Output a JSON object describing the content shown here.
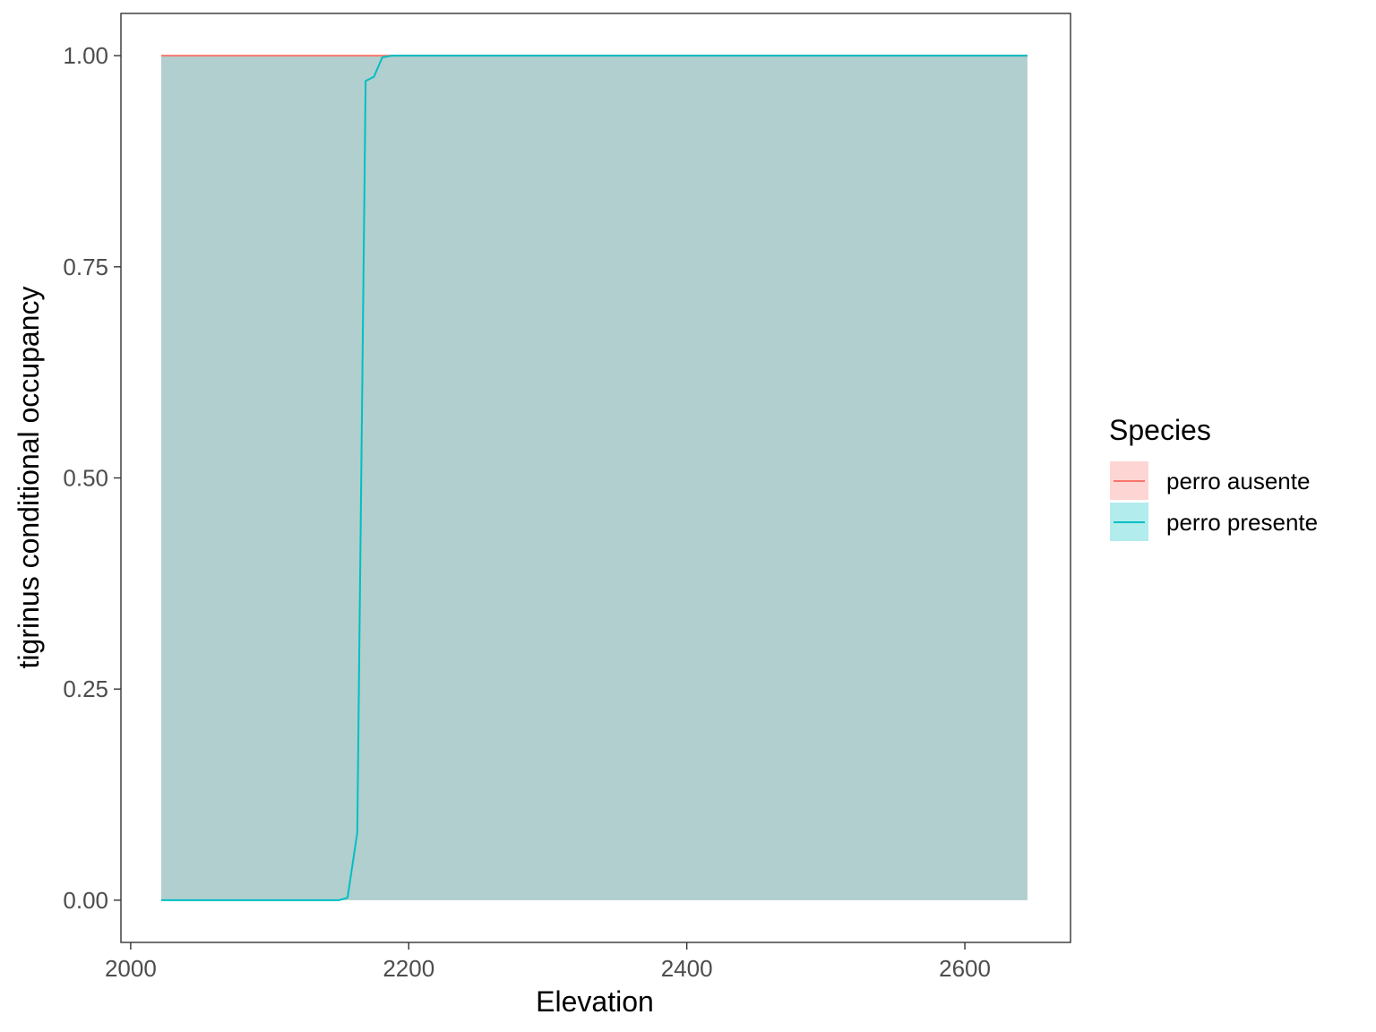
{
  "chart_data": {
    "type": "line",
    "xlabel": "Elevation",
    "ylabel": "tigrinus conditional occupancy",
    "xlim": [
      1993,
      2676
    ],
    "ylim": [
      -0.05,
      1.05
    ],
    "x_ticks": [
      2000,
      2200,
      2400,
      2600
    ],
    "x_tick_labels": [
      "2000",
      "2200",
      "2400",
      "2600"
    ],
    "y_ticks": [
      0,
      0.25,
      0.5,
      0.75,
      1
    ],
    "y_tick_labels": [
      "0.00",
      "0.25",
      "0.50",
      "0.75",
      "1.00"
    ],
    "grid": false,
    "legend": {
      "title": "Species",
      "position": "right"
    },
    "series": [
      {
        "name": "perro ausente",
        "color": "#F8766D",
        "x": [
          2022,
          2060,
          2100,
          2150,
          2156,
          2163,
          2169,
          2175,
          2181,
          2188,
          2200,
          2300,
          2400,
          2500,
          2600,
          2645
        ],
        "values": [
          1,
          1,
          1,
          1,
          1,
          1,
          1,
          1,
          1,
          1,
          1,
          1,
          1,
          1,
          1,
          1
        ],
        "ribbon_lower": [
          0,
          0,
          0,
          0,
          0,
          0,
          0,
          0,
          0,
          0,
          0,
          0,
          0,
          0,
          0,
          0
        ],
        "ribbon_upper": [
          1,
          1,
          1,
          1,
          1,
          1,
          1,
          1,
          1,
          1,
          1,
          1,
          1,
          1,
          1,
          1
        ]
      },
      {
        "name": "perro presente",
        "color": "#00BFC4",
        "x": [
          2022,
          2060,
          2100,
          2150,
          2156,
          2163,
          2169,
          2175,
          2181,
          2188,
          2200,
          2300,
          2400,
          2500,
          2600,
          2645
        ],
        "values": [
          0,
          0,
          0,
          0,
          0.003,
          0.08,
          0.97,
          0.975,
          0.998,
          1,
          1,
          1,
          1,
          1,
          1,
          1
        ],
        "ribbon_lower": [
          0,
          0,
          0,
          0,
          0,
          0,
          0,
          0,
          0,
          0,
          0,
          0,
          0,
          0,
          0,
          0
        ],
        "ribbon_upper": [
          1,
          1,
          1,
          1,
          1,
          1,
          1,
          1,
          1,
          1,
          1,
          1,
          1,
          1,
          1,
          1
        ]
      }
    ]
  }
}
